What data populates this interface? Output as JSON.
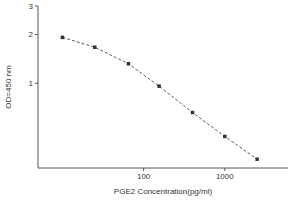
{
  "chart_data": {
    "type": "line",
    "x_label": "PGE2 Concentration(pg/ml)",
    "y_label": "OD=450 nm",
    "x": [
      10,
      25,
      65,
      155,
      400,
      1000,
      2500
    ],
    "values": [
      1.92,
      1.67,
      1.32,
      0.96,
      0.66,
      0.47,
      0.34
    ],
    "color": "#333333",
    "marker": "square",
    "line_style": "dashed",
    "log": true,
    "xlim": [
      5,
      6000
    ],
    "ylim": [
      0.3,
      3
    ],
    "xticks": [
      100,
      1000
    ],
    "yticks": [
      1,
      2,
      3
    ],
    "grid": false
  }
}
